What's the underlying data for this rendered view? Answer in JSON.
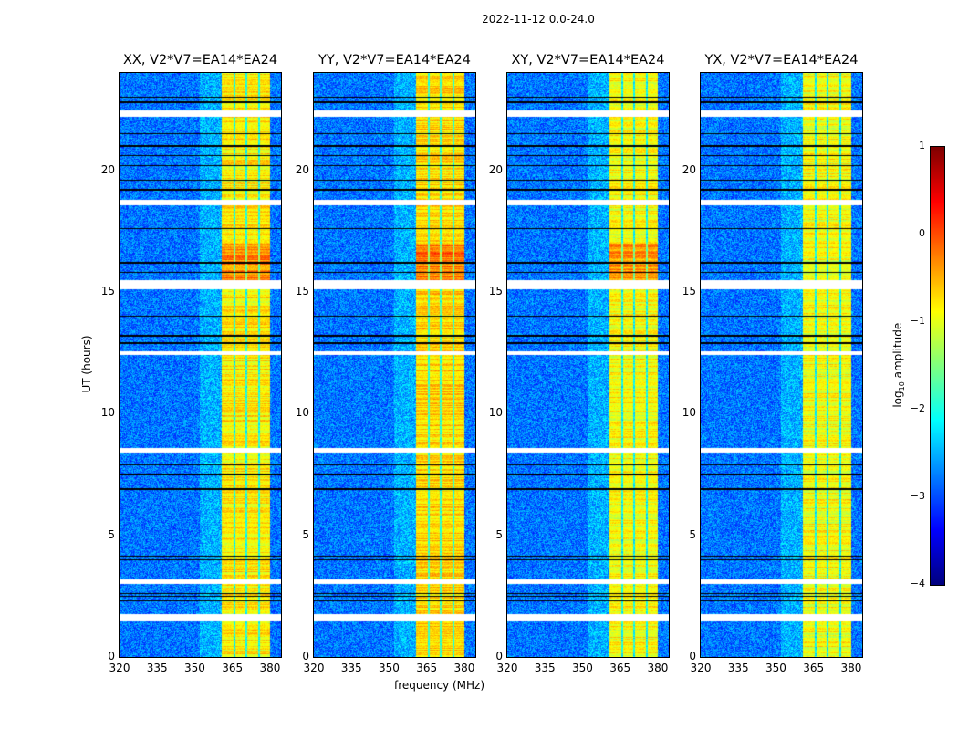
{
  "chart_data": {
    "type": "heatmap",
    "title": "2022-11-12 0.0-24.0",
    "xlabel": "frequency (MHz)",
    "ylabel": "UT (hours)",
    "xlim": [
      320,
      384.4
    ],
    "ylim": [
      0,
      24
    ],
    "xticks": [
      "320",
      "335",
      "350",
      "365",
      "380"
    ],
    "yticks": [
      "0",
      "5",
      "10",
      "15",
      "20"
    ],
    "panels": [
      {
        "title": "XX, V2*V7=EA14*EA24",
        "band_level": -0.8
      },
      {
        "title": "YY, V2*V7=EA14*EA24",
        "band_level": -0.7
      },
      {
        "title": "XY, V2*V7=EA14*EA24",
        "band_level": -0.9
      },
      {
        "title": "YX, V2*V7=EA14*EA24",
        "band_level": -0.9
      }
    ],
    "background_level": -2.8,
    "bright_band_mhz": [
      360.7,
      380.0
    ],
    "band_gaps_mhz": [
      365.8,
      370.5,
      375.6
    ],
    "flagged_hours": [
      [
        1.45,
        1.75
      ],
      [
        3.0,
        3.2
      ],
      [
        8.4,
        8.6
      ],
      [
        12.4,
        12.55
      ],
      [
        15.1,
        15.5
      ],
      [
        18.55,
        18.78
      ],
      [
        22.2,
        22.45
      ]
    ],
    "dropout_hours": [
      2.3,
      2.5,
      2.6,
      4.0,
      4.15,
      6.9,
      7.5,
      7.9,
      12.9,
      13.2,
      14.0,
      15.8,
      16.2,
      17.6,
      19.2,
      19.6,
      20.2,
      20.6,
      21.0,
      21.5,
      22.8,
      23.0
    ],
    "colorbar": {
      "label": "log10 amplitude",
      "ticks": [
        "1",
        "0",
        "−1",
        "−2",
        "−3",
        "−4"
      ],
      "range": [
        -4,
        1
      ],
      "colormap": "jet"
    }
  }
}
